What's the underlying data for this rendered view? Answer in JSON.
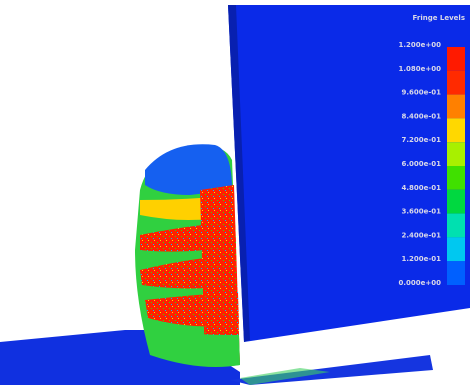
{
  "legend": {
    "title": "Fringe Levels",
    "levels": [
      "1.200e+00",
      "1.080e+00",
      "9.600e-01",
      "8.400e-01",
      "7.200e-01",
      "6.000e-01",
      "4.800e-01",
      "3.600e-01",
      "2.400e-01",
      "1.200e-01",
      "0.000e+00"
    ],
    "band_colors": [
      "#ff1a00",
      "#ff2a00",
      "#ff8000",
      "#ffd800",
      "#a8f000",
      "#40e000",
      "#00d840",
      "#00e0b0",
      "#00c8f0",
      "#0060ff"
    ]
  }
}
